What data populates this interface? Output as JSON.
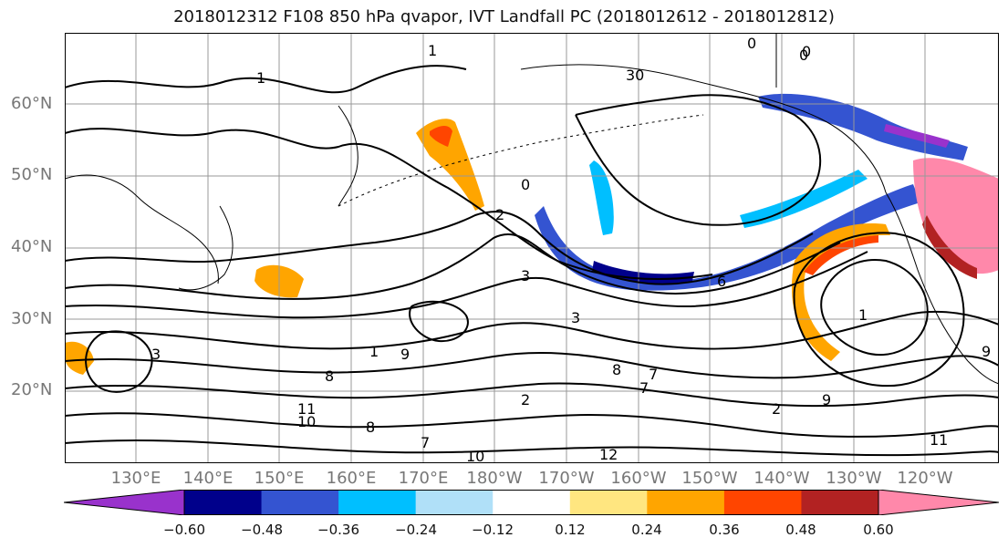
{
  "title": "2018012312 F108 850 hPa qvapor, IVT Landfall PC (2018012612 - 2018012812)",
  "lat_labels": [
    "60°N",
    "50°N",
    "40°N",
    "30°N",
    "20°N"
  ],
  "lon_labels": [
    "130°E",
    "140°E",
    "150°E",
    "160°E",
    "170°E",
    "180°W",
    "170°W",
    "160°W",
    "150°W",
    "140°W",
    "130°W",
    "120°W"
  ],
  "contour_labels": [
    "1",
    "0",
    "0",
    "1",
    "0",
    "2",
    "3",
    "6",
    "1",
    "3",
    "1",
    "3",
    "8",
    "9",
    "7",
    "8",
    "7",
    "9",
    "8",
    "10",
    "11",
    "7",
    "2",
    "12",
    "11",
    "9",
    "2",
    "10",
    "0",
    "30"
  ],
  "colorbar": {
    "colors": [
      "#9932cc",
      "#00008b",
      "#3454d1",
      "#00bfff",
      "#b0e0f8",
      "#ffffff",
      "#ffe680",
      "#ffa500",
      "#ff4500",
      "#b22222",
      "#ff88aa"
    ],
    "tick_labels": [
      "−0.60",
      "−0.48",
      "−0.36",
      "−0.24",
      "−0.12",
      "0.12",
      "0.24",
      "0.36",
      "0.48",
      "0.60"
    ]
  },
  "colors": {
    "land_outline": "#000000",
    "grid": "#999999",
    "axis_label": "#777777"
  }
}
